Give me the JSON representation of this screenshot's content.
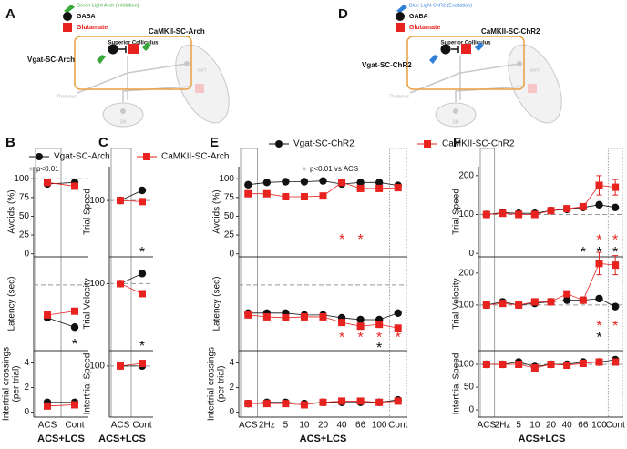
{
  "diagrams": [
    {
      "label": "A",
      "light": "Green Light Arch (Inhibition)",
      "light_color": "#3aa83a",
      "gaba": "GABA",
      "glutamate": "Glutamate",
      "excitatory": "CaMKII-SC-Arch",
      "structure": "Superior Colliculus",
      "inhibitory": "Vgat-SC-Arch",
      "thalamus": "Thalamus",
      "ppt": "PPT",
      "sn": "SN"
    },
    {
      "label": "D",
      "light": "Blue Light ChR2 (Excitation)",
      "light_color": "#2f7fd6",
      "gaba": "GABA",
      "glutamate": "Glutamate",
      "excitatory": "CaMKII-SC-ChR2",
      "structure": "Superior Colliculus",
      "inhibitory": "Vgat-SC-ChR2",
      "thalamus": "Thalamus",
      "ppt": "PPT",
      "sn": "SN"
    }
  ],
  "chart_data": [
    {
      "type": "line",
      "label": "B",
      "star": "*",
      "note": "p<0.01",
      "note_color": "#bbbbbb",
      "categories": [
        "ACS",
        "Cont"
      ],
      "xlabel": "ACS+LCS",
      "series": [
        {
          "name": "Vgat-SC-Arch",
          "color": "#111111"
        },
        {
          "name": "CaMKII-SC-Arch",
          "color": "#e8231f"
        }
      ],
      "rows": [
        {
          "ylabel": [
            "Avoids (%)"
          ],
          "ylim": [
            -4,
            116
          ],
          "yticks": [
            0,
            25,
            50,
            75,
            100
          ],
          "refline": 100,
          "values": [
            [
              93,
              95
            ],
            [
              95,
              90
            ]
          ],
          "stars": []
        },
        {
          "ylabel": [
            "Latency (sec)"
          ],
          "ylim": [
            0,
            10
          ],
          "yticks": [],
          "refline": 7,
          "values": [
            [
              3.5,
              2.5
            ],
            [
              3.8,
              4.2
            ]
          ],
          "stars": [
            {
              "x": 1,
              "y": 0.9,
              "color": "#111111"
            }
          ]
        },
        {
          "ylabel": [
            "Intertrial crossings",
            "(per trial)"
          ],
          "ylim": [
            -0.4,
            5
          ],
          "yticks": [
            0,
            2,
            4
          ],
          "values": [
            [
              0.8,
              0.8
            ],
            [
              0.5,
              0.6
            ]
          ],
          "stars": []
        }
      ]
    },
    {
      "type": "line",
      "label": "C",
      "star": "*",
      "categories": [
        "ACS",
        "Cont"
      ],
      "xlabel": "ACS+LCS",
      "series": [
        {
          "color": "#111111"
        },
        {
          "color": "#e8231f"
        }
      ],
      "rows": [
        {
          "ylabel": [
            "Trial Speed"
          ],
          "ylim": [
            0,
            160
          ],
          "yticks": [
            100
          ],
          "refline": 100,
          "values": [
            [
              100,
              118
            ],
            [
              100,
              98
            ]
          ],
          "stars": [
            {
              "x": 1,
              "y": 12,
              "color": "#111111"
            }
          ]
        },
        {
          "ylabel": [
            "Trial Velocity"
          ],
          "ylim": [
            0,
            140
          ],
          "yticks": [
            100
          ],
          "refline": 100,
          "values": [
            [
              100,
              115
            ],
            [
              100,
              85
            ]
          ],
          "stars": [
            {
              "x": 1,
              "y": 10,
              "color": "#111111"
            }
          ]
        },
        {
          "ylabel": [
            "Intertrial Speed"
          ],
          "ylim": [
            0,
            130
          ],
          "yticks": [
            100
          ],
          "refline": 100,
          "values": [
            [
              100,
              100
            ],
            [
              100,
              105
            ]
          ],
          "stars": []
        }
      ]
    },
    {
      "type": "line",
      "label": "E",
      "star": "*",
      "note": "p<0.01 vs ACS",
      "note_color": "#bbbbbb",
      "categories": [
        "ACS",
        "2Hz",
        "5",
        "10",
        "20",
        "40",
        "66",
        "100",
        "Cont"
      ],
      "xlabel": "ACS+LCS",
      "series": [
        {
          "name": "Vgat-SC-ChR2",
          "color": "#111111"
        },
        {
          "name": "CaMKII-SC-ChR2",
          "color": "#e8231f"
        }
      ],
      "rows": [
        {
          "ylabel": [
            "Avoids (%)"
          ],
          "ylim": [
            -4,
            116
          ],
          "yticks": [
            0,
            25,
            50,
            75,
            100
          ],
          "values": [
            [
              92,
              95,
              96,
              96,
              97,
              93,
              95,
              95,
              91
            ],
            [
              80,
              80,
              76,
              76,
              77,
              95,
              87,
              87,
              88
            ]
          ],
          "stars": [
            {
              "x": 5,
              "y": 22,
              "color": "#e8231f"
            },
            {
              "x": 6,
              "y": 22,
              "color": "#e8231f"
            }
          ]
        },
        {
          "ylabel": [
            "Latency (sec)"
          ],
          "ylim": [
            0,
            10
          ],
          "yticks": [],
          "refline": 7,
          "values": [
            [
              4,
              4,
              4,
              3.8,
              3.8,
              3.5,
              3.3,
              3.3,
              4
            ],
            [
              3.8,
              3.6,
              3.5,
              3.6,
              3.6,
              3,
              2.6,
              2.8,
              2.4
            ]
          ],
          "stars": [
            {
              "x": 5,
              "y": 1.6,
              "color": "#e8231f"
            },
            {
              "x": 6,
              "y": 1.6,
              "color": "#e8231f"
            },
            {
              "x": 7,
              "y": 1.6,
              "color": "#e8231f"
            },
            {
              "x": 8,
              "y": 1.6,
              "color": "#e8231f"
            },
            {
              "x": 7,
              "y": 0.5,
              "color": "#111111"
            }
          ]
        },
        {
          "ylabel": [
            "Intertrial crossings",
            "(per trial)"
          ],
          "ylim": [
            -0.4,
            5
          ],
          "yticks": [
            0,
            2,
            4
          ],
          "values": [
            [
              0.7,
              0.8,
              0.8,
              0.7,
              0.8,
              0.8,
              0.8,
              0.8,
              1.0
            ],
            [
              0.7,
              0.7,
              0.7,
              0.6,
              0.8,
              0.9,
              0.9,
              0.8,
              0.9
            ]
          ],
          "stars": []
        }
      ]
    },
    {
      "type": "line",
      "label": "F",
      "star": "*",
      "categories": [
        "ACS",
        "2Hz",
        "5",
        "10",
        "20",
        "40",
        "66",
        "100",
        "Cont"
      ],
      "xlabel": "ACS+LCS",
      "series": [
        {
          "color": "#111111"
        },
        {
          "color": "#e8231f"
        }
      ],
      "rows": [
        {
          "ylabel": [
            "Trial Speed"
          ],
          "ylim": [
            -9,
            223
          ],
          "yticks": [
            0,
            100,
            200
          ],
          "refline": 100,
          "values": [
            [
              100,
              105,
              103,
              103,
              110,
              113,
              118,
              125,
              118
            ],
            [
              100,
              103,
              100,
              100,
              110,
              115,
              120,
              175,
              170
            ]
          ],
          "errors": [
            [
              null,
              null,
              null,
              null,
              null,
              null,
              null,
              null,
              null
            ],
            [
              null,
              null,
              null,
              null,
              null,
              null,
              null,
              25,
              20
            ]
          ],
          "stars": [
            {
              "x": 7,
              "y": 40,
              "color": "#e8231f"
            },
            {
              "x": 8,
              "y": 40,
              "color": "#e8231f"
            },
            {
              "x": 6,
              "y": 8,
              "color": "#111111"
            },
            {
              "x": 7,
              "y": 8,
              "color": "#111111"
            },
            {
              "x": 8,
              "y": 8,
              "color": "#111111"
            }
          ]
        },
        {
          "ylabel": [
            "Trial Velocity"
          ],
          "ylim": [
            -43,
            251
          ],
          "yticks": [
            100,
            200
          ],
          "refline": 100,
          "values": [
            [
              100,
              110,
              100,
              105,
              110,
              115,
              115,
              120,
              95
            ],
            [
              100,
              105,
              100,
              110,
              110,
              135,
              115,
              230,
              225
            ]
          ],
          "errors": [
            [
              null,
              null,
              null,
              null,
              null,
              null,
              null,
              null,
              null
            ],
            [
              null,
              null,
              null,
              null,
              null,
              null,
              null,
              35,
              30
            ]
          ],
          "stars": [
            {
              "x": 7,
              "y": 40,
              "color": "#e8231f"
            },
            {
              "x": 8,
              "y": 40,
              "color": "#e8231f"
            },
            {
              "x": 7,
              "y": 5,
              "color": "#111111"
            }
          ]
        },
        {
          "ylabel": [
            "Intertrial Speed"
          ],
          "ylim": [
            -16,
            130
          ],
          "yticks": [
            0,
            50,
            100
          ],
          "refline": 100,
          "values": [
            [
              100,
              100,
              105,
              95,
              100,
              100,
              105,
              105,
              110
            ],
            [
              100,
              100,
              100,
              92,
              100,
              98,
              102,
              105,
              105
            ]
          ],
          "stars": []
        }
      ]
    }
  ]
}
